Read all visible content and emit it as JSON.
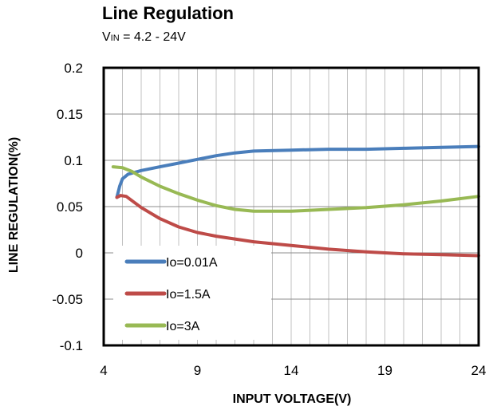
{
  "chart_data": {
    "type": "line",
    "title": "Line Regulation",
    "subtitle": {
      "prefix": "V",
      "subscript": "IN",
      "suffix": " = 4.2 - 24V"
    },
    "xlabel": "INPUT VOLTAGE(V)",
    "ylabel": "LINE REGULATION(%)",
    "xlim": [
      4,
      24
    ],
    "ylim": [
      -0.1,
      0.2
    ],
    "x_ticks": [
      4,
      9,
      14,
      19,
      24
    ],
    "y_ticks": [
      0.2,
      0.15,
      0.1,
      0.05,
      0,
      -0.05,
      -0.1
    ],
    "y_tick_labels": [
      "0.2",
      "0.15",
      "0.1",
      "0.05",
      "0",
      "-0.05",
      "-0.1"
    ],
    "x_minor_grid_step": 1,
    "y_grid": true,
    "legend_position": "bottom-left",
    "series": [
      {
        "name": "Io=0.01A",
        "color": "#4a7ebb",
        "x": [
          4.7,
          4.85,
          5.0,
          5.3,
          6,
          7,
          8,
          9,
          10,
          11,
          12,
          14,
          16,
          18,
          20,
          22,
          24
        ],
        "y": [
          0.06,
          0.072,
          0.08,
          0.085,
          0.089,
          0.093,
          0.097,
          0.101,
          0.105,
          0.108,
          0.11,
          0.111,
          0.112,
          0.112,
          0.113,
          0.114,
          0.115
        ]
      },
      {
        "name": "Io=1.5A",
        "color": "#be4b48",
        "x": [
          4.7,
          4.9,
          5.2,
          5.6,
          6,
          7,
          8,
          9,
          10,
          12,
          14,
          16,
          18,
          20,
          22,
          24
        ],
        "y": [
          0.06,
          0.062,
          0.061,
          0.055,
          0.049,
          0.037,
          0.028,
          0.022,
          0.018,
          0.012,
          0.008,
          0.004,
          0.001,
          -0.001,
          -0.002,
          -0.003
        ]
      },
      {
        "name": "Io=3A",
        "color": "#98b954",
        "x": [
          4.5,
          5.0,
          5.5,
          6,
          7,
          8,
          9,
          10,
          11,
          12,
          13,
          14,
          16,
          18,
          20,
          22,
          24
        ],
        "y": [
          0.093,
          0.092,
          0.088,
          0.082,
          0.072,
          0.064,
          0.057,
          0.051,
          0.047,
          0.045,
          0.045,
          0.045,
          0.047,
          0.049,
          0.052,
          0.056,
          0.061
        ]
      }
    ]
  }
}
